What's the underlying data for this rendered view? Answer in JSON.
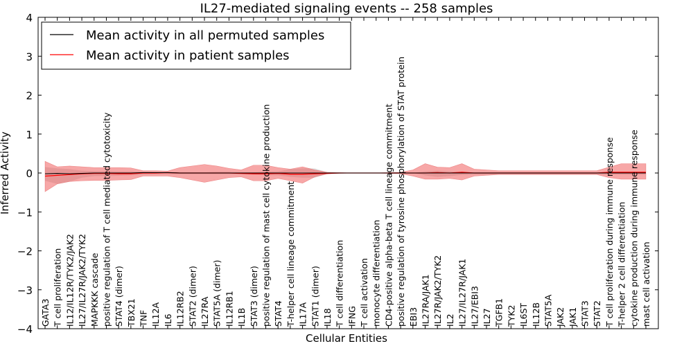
{
  "chart_data": {
    "type": "line",
    "title": "IL27-mediated signaling events -- 258 samples",
    "xlabel": "Cellular Entities",
    "ylabel": "Inferred Activity",
    "ylim": [
      -4,
      4
    ],
    "yticks": [
      "4",
      "3",
      "2",
      "1",
      "0",
      "−1",
      "−2",
      "−3",
      "−4"
    ],
    "ytick_values": [
      4,
      3,
      2,
      1,
      0,
      -1,
      -2,
      -3,
      -4
    ],
    "legend": {
      "position": "top-left",
      "entries": [
        {
          "label": "Mean activity in all permuted samples",
          "color": "#000000"
        },
        {
          "label": "Mean activity in patient samples",
          "color": "#ff0000"
        }
      ]
    },
    "categories": [
      "GATA3",
      "T cell proliferation",
      "IL12/IL12R/TYK2/JAK2",
      "IL27/IL27R/JAK2/TYK2",
      "MAPKKK cascade",
      "positive regulation of T cell mediated cytotoxicity",
      "STAT4 (dimer)",
      "TBX21",
      "TNF",
      "IL12A",
      "IL6",
      "IL12RB2",
      "STAT2 (dimer)",
      "IL27RA",
      "STAT5A (dimer)",
      "IL12RB1",
      "IL1B",
      "STAT3 (dimer)",
      "positive regulation of mast cell cytokine production",
      "STAT4",
      "T-helper cell lineage commitment",
      "IL17A",
      "STAT1 (dimer)",
      "IL18",
      "T cell differentiation",
      "IFNG",
      "T cell activation",
      "monocyte differentiation",
      "CD4-positive alpha-beta T cell lineage commitment",
      "positive regulation of tyrosine phosphorylation of STAT protein",
      "EBI3",
      "IL27RA/JAK1",
      "IL27R/JAK2/TYK2",
      "IL2",
      "IL27/IL27R/JAK1",
      "IL27/EBI3",
      "IL27",
      "TGFB1",
      "TYK2",
      "IL6ST",
      "IL12B",
      "STAT5A",
      "JAK2",
      "JAK1",
      "STAT3",
      "STAT2",
      "T cell proliferation during immune response",
      "T-helper 2 cell differentiation",
      "cytokine production during immune response",
      "mast cell activation"
    ],
    "series": [
      {
        "name": "Mean activity in all permuted samples",
        "color": "#000000",
        "values": [
          -0.02,
          -0.01,
          -0.02,
          -0.01,
          0.0,
          0.0,
          0.0,
          0.0,
          0.01,
          0.01,
          0.01,
          0.0,
          0.0,
          0.0,
          0.0,
          0.0,
          0.0,
          0.0,
          0.0,
          0.0,
          0.0,
          0.0,
          0.0,
          0.0,
          0.0,
          0.0,
          0.0,
          0.0,
          0.0,
          0.0,
          0.0,
          0.0,
          0.0,
          0.0,
          0.0,
          0.0,
          0.0,
          0.0,
          0.0,
          0.0,
          0.0,
          0.0,
          0.0,
          0.0,
          0.0,
          0.0,
          0.0,
          0.0,
          0.0,
          0.0
        ],
        "band_upper": [
          0.15,
          0.12,
          0.1,
          0.06,
          0.05,
          0.05,
          0.04,
          0.04,
          0.03,
          0.02,
          0.02,
          0.02,
          0.02,
          0.02,
          0.03,
          0.03,
          0.02,
          0.02,
          0.03,
          0.04,
          0.1,
          0.12,
          0.12,
          0.02,
          0.01,
          0.0,
          0.0,
          0.0,
          0.0,
          0.0,
          0.0,
          0.04,
          0.06,
          0.04,
          0.02,
          0.02,
          0.02,
          0.02,
          0.02,
          0.02,
          0.02,
          0.02,
          0.02,
          0.02,
          0.02,
          0.02,
          0.02,
          0.02,
          0.02,
          0.02
        ],
        "band_lower": [
          -0.2,
          -0.28,
          -0.22,
          -0.12,
          -0.08,
          -0.08,
          -0.07,
          -0.06,
          -0.04,
          -0.03,
          -0.03,
          -0.03,
          -0.03,
          -0.03,
          -0.03,
          -0.03,
          -0.03,
          -0.05,
          -0.06,
          -0.06,
          -0.1,
          -0.12,
          -0.12,
          -0.03,
          -0.01,
          0.0,
          0.0,
          0.0,
          0.0,
          0.0,
          0.0,
          -0.06,
          -0.1,
          -0.08,
          -0.05,
          -0.04,
          -0.04,
          -0.04,
          -0.04,
          -0.04,
          -0.04,
          -0.04,
          -0.04,
          -0.04,
          -0.04,
          -0.04,
          -0.04,
          -0.04,
          -0.04,
          -0.04
        ]
      },
      {
        "name": "Mean activity in patient samples",
        "color": "#ff0000",
        "values": [
          -0.08,
          -0.06,
          -0.04,
          -0.02,
          -0.01,
          -0.01,
          -0.02,
          -0.02,
          0.0,
          0.0,
          0.01,
          0.0,
          0.0,
          0.0,
          0.0,
          0.0,
          -0.01,
          -0.02,
          -0.02,
          -0.01,
          -0.03,
          -0.03,
          -0.02,
          -0.01,
          0.0,
          0.0,
          0.0,
          0.0,
          0.0,
          0.0,
          0.0,
          0.0,
          0.01,
          0.0,
          0.02,
          0.0,
          0.0,
          0.0,
          0.0,
          0.0,
          0.0,
          0.0,
          0.0,
          0.0,
          0.0,
          0.0,
          0.02,
          0.02,
          0.02,
          0.02
        ],
        "band_upper": [
          0.3,
          0.16,
          0.18,
          0.16,
          0.14,
          0.14,
          0.14,
          0.13,
          0.06,
          0.06,
          0.05,
          0.14,
          0.18,
          0.22,
          0.18,
          0.12,
          0.08,
          0.2,
          0.2,
          0.14,
          0.1,
          0.16,
          0.08,
          0.02,
          0.01,
          0.0,
          0.0,
          0.0,
          0.01,
          0.02,
          0.08,
          0.24,
          0.15,
          0.14,
          0.24,
          0.1,
          0.08,
          0.06,
          0.06,
          0.06,
          0.06,
          0.06,
          0.06,
          0.06,
          0.06,
          0.06,
          0.15,
          0.24,
          0.24,
          0.24
        ],
        "band_lower": [
          -0.48,
          -0.28,
          -0.22,
          -0.2,
          -0.19,
          -0.19,
          -0.18,
          -0.17,
          -0.08,
          -0.08,
          -0.08,
          -0.12,
          -0.18,
          -0.24,
          -0.18,
          -0.12,
          -0.1,
          -0.2,
          -0.2,
          -0.14,
          -0.2,
          -0.26,
          -0.1,
          -0.02,
          -0.01,
          0.0,
          0.0,
          0.0,
          -0.01,
          -0.02,
          -0.08,
          -0.16,
          -0.16,
          -0.14,
          -0.18,
          -0.08,
          -0.06,
          -0.04,
          -0.04,
          -0.04,
          -0.04,
          -0.04,
          -0.04,
          -0.04,
          -0.04,
          -0.04,
          -0.12,
          -0.16,
          -0.16,
          -0.16
        ]
      }
    ]
  }
}
